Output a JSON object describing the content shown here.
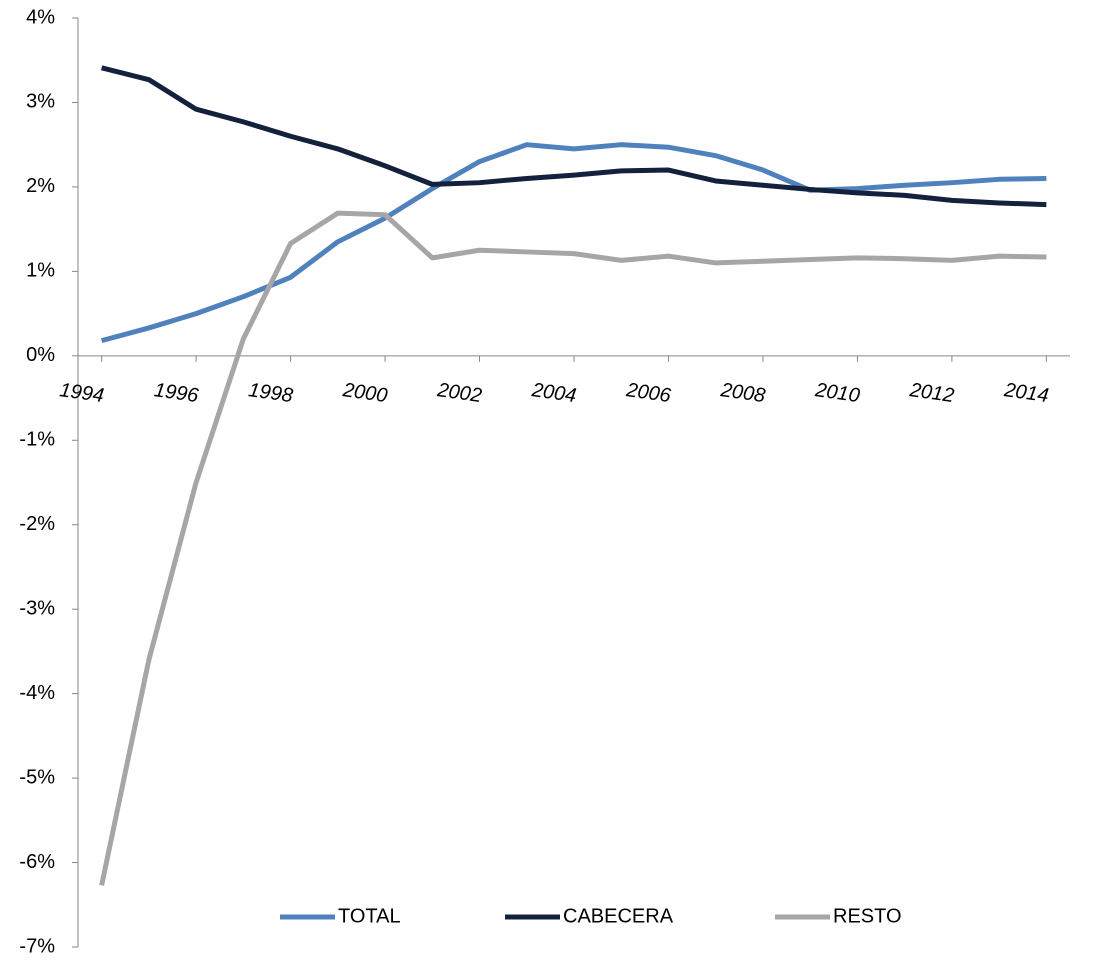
{
  "chart_data": {
    "type": "line",
    "x": [
      1994,
      1995,
      1996,
      1997,
      1998,
      1999,
      2000,
      2001,
      2002,
      2003,
      2004,
      2005,
      2006,
      2007,
      2008,
      2009,
      2010,
      2011,
      2012,
      2013,
      2014
    ],
    "series": [
      {
        "name": "TOTAL",
        "color": "#4f81bd",
        "values": [
          0.18,
          0.33,
          0.5,
          0.7,
          0.93,
          1.35,
          1.63,
          1.98,
          2.3,
          2.5,
          2.45,
          2.5,
          2.47,
          2.37,
          2.2,
          1.96,
          1.98,
          2.02,
          2.05,
          2.09,
          2.1
        ]
      },
      {
        "name": "CABECERA",
        "color": "#14213d",
        "values": [
          3.41,
          3.27,
          2.92,
          2.77,
          2.6,
          2.45,
          2.25,
          2.03,
          2.05,
          2.1,
          2.14,
          2.19,
          2.2,
          2.07,
          2.02,
          1.97,
          1.93,
          1.9,
          1.84,
          1.81,
          1.79
        ]
      },
      {
        "name": "RESTO",
        "color": "#a6a6a6",
        "values": [
          -6.27,
          -3.6,
          -1.5,
          0.2,
          1.33,
          1.69,
          1.67,
          1.16,
          1.25,
          1.23,
          1.21,
          1.13,
          1.18,
          1.1,
          1.12,
          1.14,
          1.16,
          1.15,
          1.13,
          1.18,
          1.17
        ]
      }
    ],
    "xlim": [
      1993.5,
      2014.5
    ],
    "xticks": [
      1994,
      1996,
      1998,
      2000,
      2002,
      2004,
      2006,
      2008,
      2010,
      2012,
      2014
    ],
    "ylim": [
      -7,
      4
    ],
    "yticks": [
      {
        "value": -7,
        "label": "-7%"
      },
      {
        "value": -6,
        "label": "-6%"
      },
      {
        "value": -5,
        "label": "-5%"
      },
      {
        "value": -4,
        "label": "-4%"
      },
      {
        "value": -3,
        "label": "-3%"
      },
      {
        "value": -2,
        "label": "-2%"
      },
      {
        "value": -1,
        "label": "-1%"
      },
      {
        "value": 0,
        "label": "0%"
      },
      {
        "value": 1,
        "label": "1%"
      },
      {
        "value": 2,
        "label": "2%"
      },
      {
        "value": 3,
        "label": "3%"
      },
      {
        "value": 4,
        "label": "4%"
      }
    ],
    "grid": false,
    "legend": "bottom"
  }
}
